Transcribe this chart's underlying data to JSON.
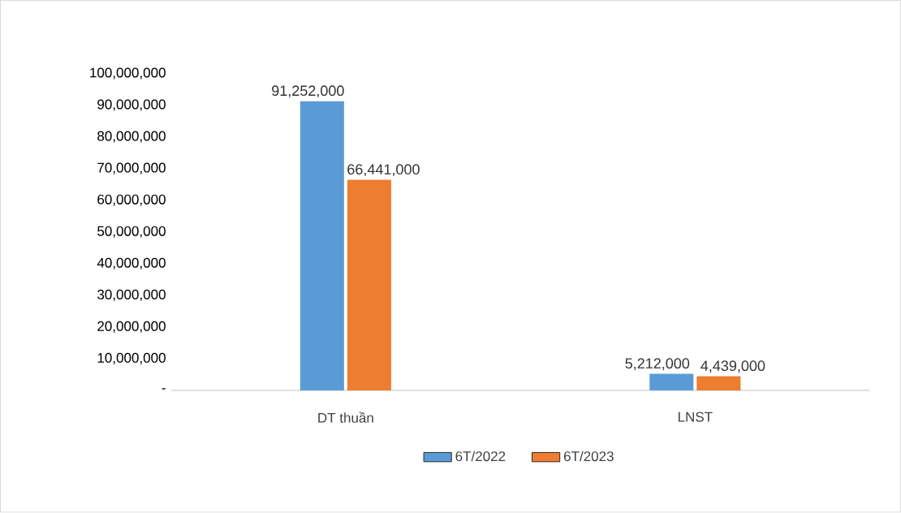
{
  "chart_data": {
    "type": "bar",
    "categories": [
      "DT thuần",
      "LNST"
    ],
    "series": [
      {
        "name": "6T/2022",
        "color": "#5b9bd5",
        "values": [
          91252000,
          5212000
        ],
        "value_labels": [
          "91,252,000",
          "5,212,000"
        ]
      },
      {
        "name": "6T/2023",
        "color": "#ed7d31",
        "values": [
          66441000,
          4439000
        ],
        "value_labels": [
          "66,441,000",
          "4,439,000"
        ]
      }
    ],
    "ylim": [
      0,
      100000000
    ],
    "yticks": [
      {
        "value": 0,
        "label": "-"
      },
      {
        "value": 10000000,
        "label": "10,000,000"
      },
      {
        "value": 20000000,
        "label": "20,000,000"
      },
      {
        "value": 30000000,
        "label": "30,000,000"
      },
      {
        "value": 40000000,
        "label": "40,000,000"
      },
      {
        "value": 50000000,
        "label": "50,000,000"
      },
      {
        "value": 60000000,
        "label": "60,000,000"
      },
      {
        "value": 70000000,
        "label": "70,000,000"
      },
      {
        "value": 80000000,
        "label": "80,000,000"
      },
      {
        "value": 90000000,
        "label": "90,000,000"
      },
      {
        "value": 100000000,
        "label": "100,000,000"
      }
    ],
    "grid": false,
    "legend": "bottom"
  }
}
